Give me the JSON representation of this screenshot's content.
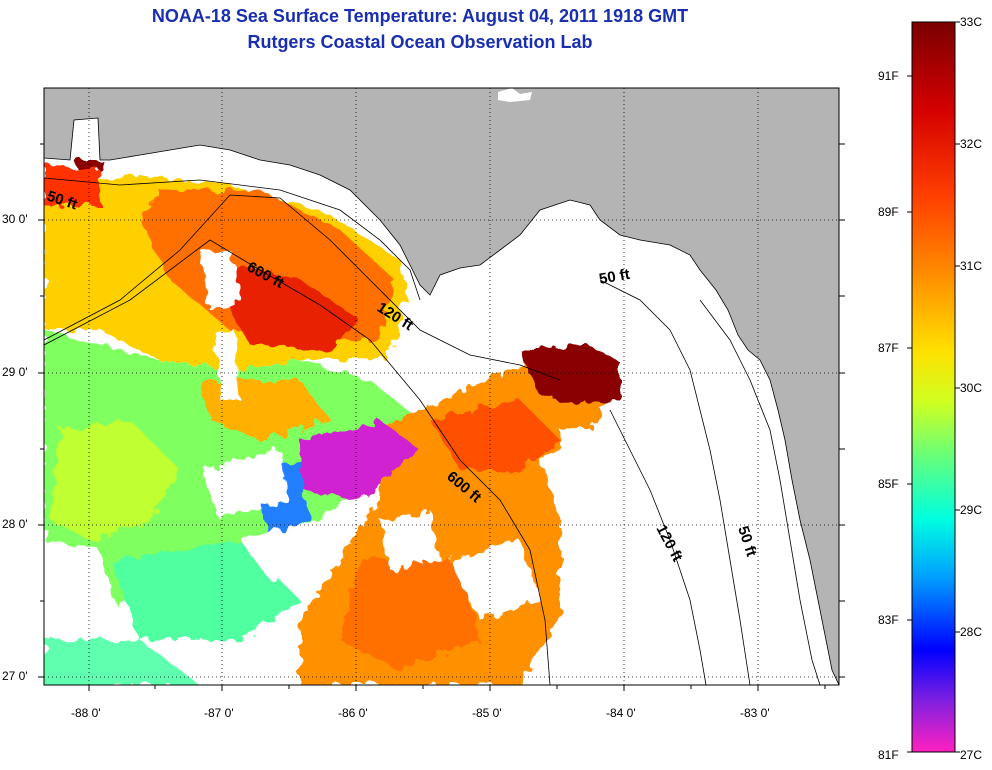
{
  "header": {
    "title": "NOAA-18 Sea Surface Temperature:  August 04, 2011 1918 GMT",
    "subtitle": "Rutgers Coastal Ocean Observation Lab"
  },
  "map": {
    "lon_ticks": [
      "-88 0'",
      "-87 0'",
      "-86 0'",
      "-85 0'",
      "-84 0'",
      "-83 0'"
    ],
    "lat_ticks": [
      "30 0'",
      "29 0'",
      "28 0'",
      "27 0'"
    ],
    "contour_labels": [
      "50 ft",
      "600 ft",
      "120 ft",
      "50 ft",
      "600 ft",
      "120 ft",
      "50 ft"
    ],
    "land_color": "#b4b4b4",
    "no_data_color": "#ffffff",
    "grid": "dotted"
  },
  "colorbar": {
    "celsius": [
      "33C",
      "32C",
      "31C",
      "30C",
      "29C",
      "28C",
      "27C"
    ],
    "fahrenheit": [
      "91F",
      "89F",
      "87F",
      "85F",
      "83F",
      "81F"
    ],
    "colors": [
      "#7a0000",
      "#d40000",
      "#ff3000",
      "#ff8000",
      "#ffd000",
      "#ffff00",
      "#b0ff30",
      "#40ff90",
      "#00ffe0",
      "#00c0ff",
      "#0060ff",
      "#0000ff",
      "#8020e0",
      "#ff20c0"
    ]
  }
}
